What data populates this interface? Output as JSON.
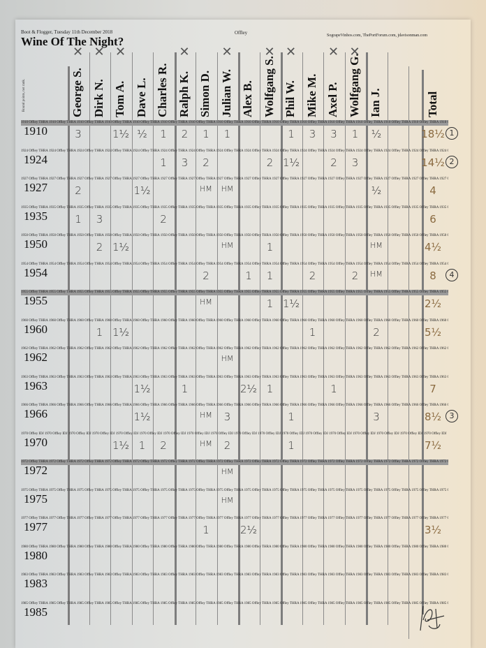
{
  "header": {
    "event": "Boot & Flogger, Tuesday 11th December 2018",
    "title": "Wine Of The Night?",
    "producer": "Offley",
    "sites": "SograpeVinhos.com, ThePortForum.com, jdavisonman.com",
    "side_note": "Round points, not rank."
  },
  "columns": [
    "George S.",
    "Dirk N.",
    "Tom A.",
    "Dave L.",
    "Charles R.",
    "Ralph K.",
    "Simon D.",
    "Julian W.",
    "Alex B.",
    "Wolfgang S.",
    "Phil W.",
    "Mike M.",
    "Axel P.",
    "Wolfgang G.",
    "Ian J.",
    ""
  ],
  "total_label": "Total",
  "crossed_out": [
    true,
    true,
    true,
    false,
    false,
    true,
    false,
    true,
    false,
    true,
    true,
    false,
    true,
    true,
    false,
    false
  ],
  "rows": [
    {
      "vintage": "1910",
      "strip": "1910 Offley THRA",
      "shaded": true,
      "scores": [
        "3",
        "",
        "1½",
        "½",
        "1",
        "2",
        "1",
        "1",
        "",
        "",
        "1",
        "3",
        "3",
        "1",
        "½",
        ""
      ],
      "total": "18½",
      "rank": "1"
    },
    {
      "vintage": "1924",
      "strip": "1924 Offley THRA",
      "shaded": false,
      "scores": [
        "",
        "",
        "",
        "",
        "1",
        "3",
        "2",
        "",
        "",
        "2",
        "1½",
        "",
        "2",
        "3",
        "",
        ""
      ],
      "total": "14½",
      "rank": "2"
    },
    {
      "vintage": "1927",
      "strip": "1927 Offley THRA",
      "shaded": false,
      "scores": [
        "2",
        "",
        "",
        "1½",
        "",
        "",
        "HM",
        "HM",
        "",
        "",
        "",
        "",
        "",
        "",
        "½",
        ""
      ],
      "total": "4",
      "rank": ""
    },
    {
      "vintage": "1935",
      "strip": "1935 Offley THRA",
      "shaded": false,
      "scores": [
        "1",
        "3",
        "",
        "",
        "2",
        "",
        "",
        "",
        "",
        "",
        "",
        "",
        "",
        "",
        "",
        ""
      ],
      "total": "6",
      "rank": ""
    },
    {
      "vintage": "1950",
      "strip": "1950 Offley THRA",
      "shaded": false,
      "scores": [
        "",
        "2",
        "1½",
        "",
        "",
        "",
        "",
        "HM",
        "",
        "1",
        "",
        "",
        "",
        "",
        "HM",
        ""
      ],
      "total": "4½",
      "rank": ""
    },
    {
      "vintage": "1954",
      "strip": "1954 Offley THRA",
      "shaded": false,
      "scores": [
        "",
        "",
        "",
        "",
        "",
        "",
        "2",
        "",
        "1",
        "1",
        "",
        "2",
        "",
        "2",
        "HM",
        ""
      ],
      "total": "8",
      "rank": "4"
    },
    {
      "vintage": "1955",
      "strip": "1955 Offley THRA",
      "shaded": true,
      "scores": [
        "",
        "",
        "",
        "",
        "",
        "",
        "HM",
        "",
        "",
        "1",
        "1½",
        "",
        "",
        "",
        "",
        ""
      ],
      "total": "2½",
      "rank": ""
    },
    {
      "vintage": "1960",
      "strip": "1960 Offley THRA",
      "shaded": false,
      "scores": [
        "",
        "1",
        "1½",
        "",
        "",
        "",
        "",
        "",
        "",
        "",
        "",
        "1",
        "",
        "",
        "2",
        ""
      ],
      "total": "5½",
      "rank": ""
    },
    {
      "vintage": "1962",
      "strip": "1962 Offley THRA",
      "shaded": false,
      "scores": [
        "",
        "",
        "",
        "",
        "",
        "",
        "",
        "HM",
        "",
        "",
        "",
        "",
        "",
        "",
        "",
        ""
      ],
      "total": "",
      "rank": ""
    },
    {
      "vintage": "1963",
      "strip": "1963 Offley THRA",
      "shaded": false,
      "scores": [
        "",
        "",
        "",
        "1½",
        "",
        "1",
        "",
        "",
        "2½",
        "1",
        "",
        "",
        "1",
        "",
        "",
        ""
      ],
      "total": "7",
      "rank": ""
    },
    {
      "vintage": "1966",
      "strip": "1966 Offley THRA",
      "shaded": false,
      "scores": [
        "",
        "",
        "",
        "1½",
        "",
        "",
        "HM",
        "3",
        "",
        "",
        "1",
        "",
        "",
        "",
        "3",
        ""
      ],
      "total": "8½",
      "rank": "3"
    },
    {
      "vintage": "1970",
      "strip": "1970 Offley IDJ",
      "shaded": false,
      "scores": [
        "",
        "",
        "1½",
        "1",
        "2",
        "",
        "HM",
        "2",
        "",
        "",
        "1",
        "",
        "",
        "",
        "",
        ""
      ],
      "total": "7½",
      "rank": ""
    },
    {
      "vintage": "1972",
      "strip": "1972 Offley THRA",
      "shaded": true,
      "scores": [
        "",
        "",
        "",
        "",
        "",
        "",
        "",
        "HM",
        "",
        "",
        "",
        "",
        "",
        "",
        "",
        ""
      ],
      "total": "",
      "rank": ""
    },
    {
      "vintage": "1975",
      "strip": "1975 Offley THRA",
      "shaded": false,
      "scores": [
        "",
        "",
        "",
        "",
        "",
        "",
        "",
        "HM",
        "",
        "",
        "",
        "",
        "",
        "",
        "",
        ""
      ],
      "total": "",
      "rank": ""
    },
    {
      "vintage": "1977",
      "strip": "1977 Offley THRA",
      "shaded": false,
      "scores": [
        "",
        "",
        "",
        "",
        "",
        "",
        "1",
        "",
        "2½",
        "",
        "",
        "",
        "",
        "",
        "",
        ""
      ],
      "total": "3½",
      "rank": ""
    },
    {
      "vintage": "1980",
      "strip": "1980 Offley THRA",
      "shaded": false,
      "scores": [
        "",
        "",
        "",
        "",
        "",
        "",
        "",
        "",
        "",
        "",
        "",
        "",
        "",
        "",
        "",
        ""
      ],
      "total": "",
      "rank": ""
    },
    {
      "vintage": "1983",
      "strip": "1983 Offley THRA",
      "shaded": false,
      "scores": [
        "",
        "",
        "",
        "",
        "",
        "",
        "",
        "",
        "",
        "",
        "",
        "",
        "",
        "",
        "",
        ""
      ],
      "total": "",
      "rank": ""
    },
    {
      "vintage": "1985",
      "strip": "1985 Offley THRA",
      "shaded": false,
      "scores": [
        "",
        "",
        "",
        "",
        "",
        "",
        "",
        "",
        "",
        "",
        "",
        "",
        "",
        "",
        "",
        ""
      ],
      "total": "",
      "rank": ""
    }
  ],
  "colors": {
    "ink": "#333333",
    "total_ink": "#8a6a40",
    "shaded_strip": "#9a9a9a"
  }
}
